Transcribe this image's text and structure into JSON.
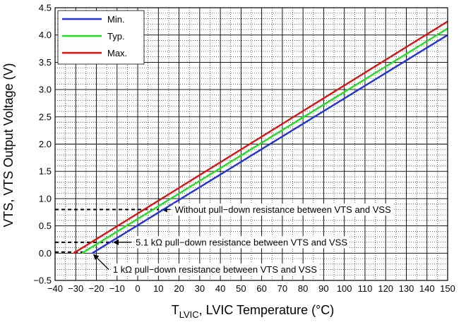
{
  "chart_data": {
    "type": "line",
    "xlabel": {
      "main": "T",
      "sub": "LVIC",
      "rest": ", LVIC Temperature (°C)"
    },
    "ylabel": "VTS, VTS Output Voltage (V)",
    "xlim": [
      -40,
      150
    ],
    "ylim": [
      -0.5,
      4.5
    ],
    "xticks": [
      -40,
      -30,
      -20,
      -10,
      0,
      10,
      20,
      30,
      40,
      50,
      60,
      70,
      80,
      90,
      100,
      110,
      120,
      130,
      140,
      150
    ],
    "xtick_labels": [
      "−40",
      "−30",
      "−20",
      "−10",
      "0",
      "10",
      "20",
      "30",
      "40",
      "50",
      "60",
      "70",
      "80",
      "90",
      "100",
      "110",
      "120",
      "130",
      "140",
      "150"
    ],
    "yticks": [
      -0.5,
      0,
      0.5,
      1,
      1.5,
      2,
      2.5,
      3,
      3.5,
      4,
      4.5
    ],
    "ytick_labels": [
      "−0.5",
      "0.0",
      "0.5",
      "1.0",
      "1.5",
      "2.0",
      "2.5",
      "3.0",
      "3.5",
      "4.0",
      "4.5"
    ],
    "minor_grid_step": {
      "x": 5,
      "y": 0.1
    },
    "grid": true,
    "legend_position": "top-left",
    "series": [
      {
        "name": "Min.",
        "color": "#2233dd",
        "x": [
          -22,
          150
        ],
        "y": [
          0.0,
          4.0
        ]
      },
      {
        "name": "Typ.",
        "color": "#22dd22",
        "x": [
          -27,
          150
        ],
        "y": [
          0.0,
          4.12
        ]
      },
      {
        "name": "Max.",
        "color": "#dd1111",
        "x": [
          -31,
          150
        ],
        "y": [
          0.0,
          4.25
        ]
      }
    ],
    "annotations": [
      {
        "text": "Without pull−down resistance between VTS and VSS",
        "level_y": 0.8,
        "line_end_x": 10,
        "arrow_tip_x": 10.5,
        "arrow_tip_y": 0.8,
        "label_x": 18,
        "label_y": 0.8
      },
      {
        "text": "5.1 kΩ pull−down resistance between VTS and VSS",
        "level_y": 0.2,
        "line_end_x": -12,
        "arrow_tip_x": -13,
        "arrow_tip_y": 0.2,
        "label_x": -1,
        "label_y": 0.2
      },
      {
        "text": "1 kΩ pull−down resistance between VTS and VSS",
        "level_y": 0.02,
        "line_end_x": -25,
        "arrow_tip_x": -22,
        "arrow_tip_y": 0.0,
        "label_x": -12,
        "label_y": -0.3
      }
    ]
  }
}
